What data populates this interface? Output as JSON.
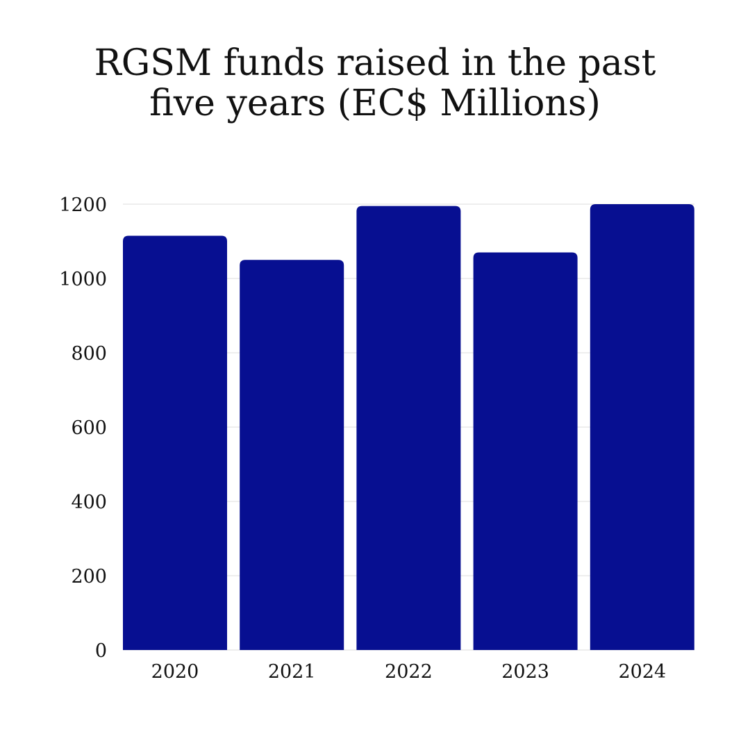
{
  "chart_data": {
    "type": "bar",
    "title_lines": [
      "RGSM funds raised in the  past",
      "five years (EC$ Millions)"
    ],
    "categories": [
      "2020",
      "2021",
      "2022",
      "2023",
      "2024"
    ],
    "values": [
      1115,
      1050,
      1195,
      1070,
      1200
    ],
    "ylim": [
      0,
      1200
    ],
    "yticks": [
      "0",
      "200",
      "400",
      "600",
      "800",
      "1000",
      "1200"
    ],
    "grid": true,
    "colors": {
      "bar": "#070F91",
      "grid": "#DDDDDD",
      "text": "#111111"
    }
  }
}
